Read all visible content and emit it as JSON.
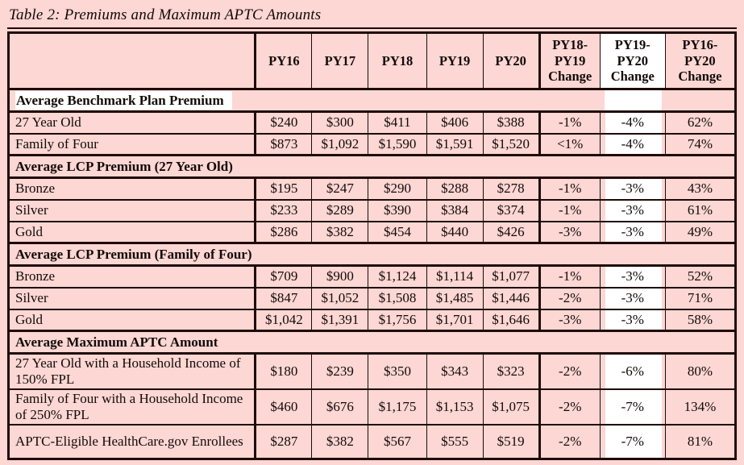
{
  "title": "Table 2: Premiums and Maximum APTC Amounts",
  "colors": {
    "page_bg": "#fcd7d3",
    "highlight": "#ffffff",
    "border": "#1f0a08",
    "text": "#120a0a"
  },
  "table": {
    "columns": [
      {
        "label": ""
      },
      {
        "label": "PY16"
      },
      {
        "label": "PY17"
      },
      {
        "label": "PY18"
      },
      {
        "label": "PY19"
      },
      {
        "label": "PY20"
      },
      {
        "label": "PY18-\nPY19\nChange"
      },
      {
        "label": "PY19-\nPY20\nChange",
        "highlighted": true
      },
      {
        "label": "PY16-\nPY20\nChange"
      }
    ],
    "sections": [
      {
        "header": "Average Benchmark Plan Premium",
        "header_highlight": true,
        "highlight_change_cell": true,
        "rows": [
          {
            "label": "27 Year Old",
            "values": [
              "$240",
              "$300",
              "$411",
              "$406",
              "$388",
              "-1%",
              "-4%",
              "62%"
            ]
          },
          {
            "label": "Family of Four",
            "values": [
              "$873",
              "$1,092",
              "$1,590",
              "$1,591",
              "$1,520",
              "<1%",
              "-4%",
              "74%"
            ]
          }
        ]
      },
      {
        "header": "Average LCP Premium (27 Year Old)",
        "header_highlight": false,
        "highlight_change_cell": false,
        "rows": [
          {
            "label": "Bronze",
            "values": [
              "$195",
              "$247",
              "$290",
              "$288",
              "$278",
              "-1%",
              "-3%",
              "43%"
            ]
          },
          {
            "label": "Silver",
            "values": [
              "$233",
              "$289",
              "$390",
              "$384",
              "$374",
              "-1%",
              "-3%",
              "61%"
            ]
          },
          {
            "label": "Gold",
            "values": [
              "$286",
              "$382",
              "$454",
              "$440",
              "$426",
              "-3%",
              "-3%",
              "49%"
            ]
          }
        ]
      },
      {
        "header": "Average LCP Premium (Family of Four)",
        "header_highlight": false,
        "highlight_change_cell": false,
        "rows": [
          {
            "label": "Bronze",
            "values": [
              "$709",
              "$900",
              "$1,124",
              "$1,114",
              "$1,077",
              "-1%",
              "-3%",
              "52%"
            ]
          },
          {
            "label": "Silver",
            "values": [
              "$847",
              "$1,052",
              "$1,508",
              "$1,485",
              "$1,446",
              "-2%",
              "-3%",
              "71%"
            ]
          },
          {
            "label": "Gold",
            "values": [
              "$1,042",
              "$1,391",
              "$1,756",
              "$1,701",
              "$1,646",
              "-3%",
              "-3%",
              "58%"
            ]
          }
        ]
      },
      {
        "header": "Average Maximum APTC Amount",
        "header_highlight": false,
        "highlight_change_cell": false,
        "rows": [
          {
            "label": "27 Year Old with a Household Income of 150% FPL",
            "values": [
              "$180",
              "$239",
              "$350",
              "$343",
              "$323",
              "-2%",
              "-6%",
              "80%"
            ]
          },
          {
            "label": "Family of Four with a Household Income of 250% FPL",
            "values": [
              "$460",
              "$676",
              "$1,175",
              "$1,153",
              "$1,075",
              "-2%",
              "-7%",
              "134%"
            ]
          },
          {
            "label": "APTC-Eligible HealthCare.gov Enrollees",
            "values": [
              "$287",
              "$382",
              "$567",
              "$555",
              "$519",
              "-2%",
              "-7%",
              "81%"
            ]
          }
        ]
      }
    ]
  }
}
